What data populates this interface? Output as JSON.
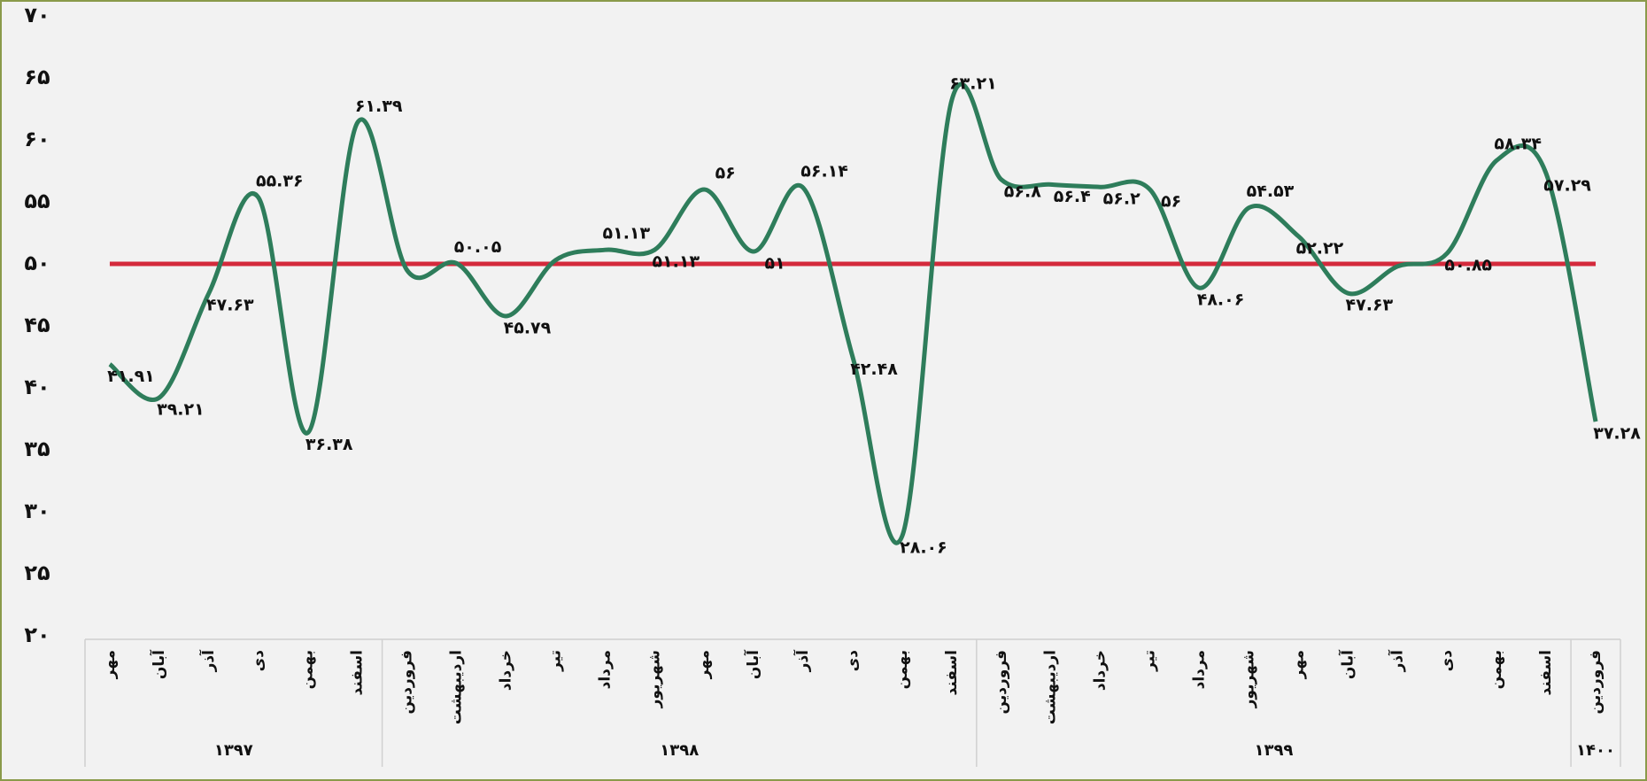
{
  "chart_data": {
    "type": "line",
    "groups": [
      {
        "label": "۱۳۹۷",
        "categories": [
          "مهر",
          "آبان",
          "آذر",
          "دی",
          "بهمن",
          "اسفند"
        ]
      },
      {
        "label": "۱۳۹۸",
        "categories": [
          "فروردین",
          "اردیبهشت",
          "خرداد",
          "تیر",
          "مرداد",
          "شهریور",
          "مهر",
          "آبان",
          "آذر",
          "دی",
          "بهمن",
          "اسفند"
        ]
      },
      {
        "label": "۱۳۹۹",
        "categories": [
          "فروردین",
          "اردیبهشت",
          "خرداد",
          "تیر",
          "مرداد",
          "شهریور",
          "مهر",
          "آبان",
          "آذر",
          "دی",
          "بهمن",
          "اسفند"
        ]
      },
      {
        "label": "۱۴۰۰",
        "categories": [
          "فروردین"
        ]
      }
    ],
    "series": [
      {
        "color": "#2e7d5b",
        "values": [
          41.91,
          39.21,
          47.63,
          55.36,
          36.38,
          61.39,
          49.5,
          50.05,
          45.79,
          50.3,
          51.13,
          51.13,
          56,
          51,
          56.14,
          42.48,
          28.06,
          63.21,
          56.8,
          56.4,
          56.2,
          56,
          48.06,
          54.53,
          52.22,
          47.63,
          49.8,
          50.85,
          58.34,
          57.29,
          37.28
        ],
        "value_labels": [
          "۴۱.۹۱",
          "۳۹.۲۱",
          "۴۷.۶۳",
          "۵۵.۳۶",
          "۳۶.۳۸",
          "۶۱.۳۹",
          null,
          "۵۰.۰۵",
          "۴۵.۷۹",
          null,
          "۵۱.۱۳",
          "۵۱.۱۳",
          "۵۶",
          "۵۱",
          "۵۶.۱۴",
          "۴۲.۴۸",
          "۲۸.۰۶",
          "۶۳.۲۱",
          "۵۶.۸",
          "۵۶.۴",
          "۵۶.۲",
          "۵۶",
          "۴۸.۰۶",
          "۵۴.۵۳",
          "۵۲.۲۲",
          "۴۷.۶۳",
          null,
          "۵۰.۸۵",
          "۵۸.۳۴",
          "۵۷.۲۹",
          "۳۷.۲۸"
        ]
      }
    ],
    "reference_line": {
      "value": 50,
      "color": "#d42a3c"
    },
    "ylim": [
      20,
      70
    ],
    "yticks": [
      {
        "value": 20,
        "label": "۲۰"
      },
      {
        "value": 25,
        "label": "۲۵"
      },
      {
        "value": 30,
        "label": "۳۰"
      },
      {
        "value": 35,
        "label": "۳۵"
      },
      {
        "value": 40,
        "label": "۴۰"
      },
      {
        "value": 45,
        "label": "۴۵"
      },
      {
        "value": 50,
        "label": "۵۰"
      },
      {
        "value": 55,
        "label": "۵۵"
      },
      {
        "value": 60,
        "label": "۶۰"
      },
      {
        "value": 65,
        "label": "۶۵"
      },
      {
        "value": 70,
        "label": "۷۰"
      }
    ]
  }
}
